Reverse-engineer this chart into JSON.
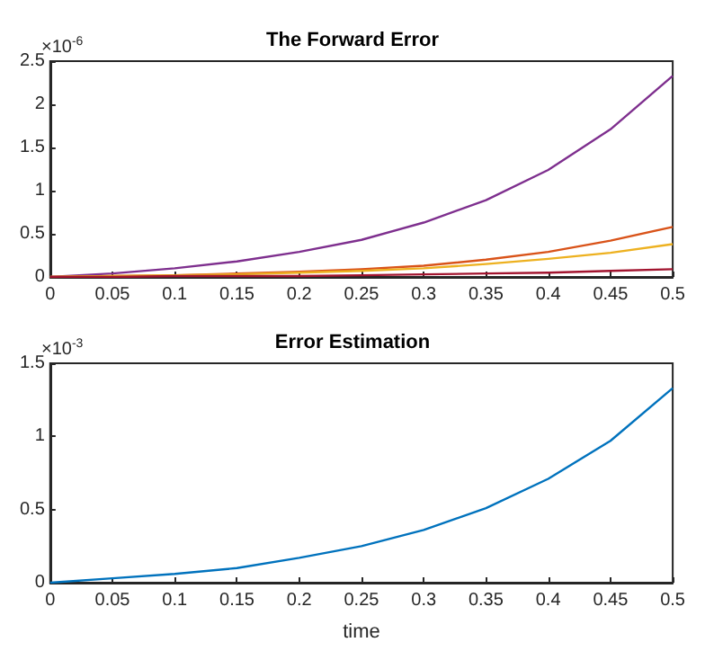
{
  "chart_data": [
    {
      "type": "line",
      "title": "The Forward Error",
      "annotations": [
        "×10$^{-6}$"
      ],
      "x": [
        0,
        0.05,
        0.1,
        0.15,
        0.2,
        0.25,
        0.3,
        0.35,
        0.4,
        0.45,
        0.5
      ],
      "series": [
        {
          "color": "#7e2f8e",
          "values": [
            0,
            0.04,
            0.1,
            0.18,
            0.29,
            0.43,
            0.63,
            0.89,
            1.24,
            1.71,
            2.33
          ]
        },
        {
          "color": "#d95319",
          "values": [
            0,
            0.01,
            0.02,
            0.04,
            0.06,
            0.09,
            0.13,
            0.2,
            0.29,
            0.42,
            0.58
          ]
        },
        {
          "color": "#edb120",
          "values": [
            0,
            0.01,
            0.02,
            0.03,
            0.05,
            0.07,
            0.1,
            0.15,
            0.21,
            0.28,
            0.38
          ]
        },
        {
          "color": "#a2142f",
          "values": [
            0,
            0,
            0.01,
            0.01,
            0.01,
            0.02,
            0.03,
            0.04,
            0.05,
            0.07,
            0.09
          ]
        }
      ],
      "xlim": [
        0,
        0.5
      ],
      "xticks": [
        0,
        0.05,
        0.1,
        0.15,
        0.2,
        0.25,
        0.3,
        0.35,
        0.4,
        0.45,
        0.5
      ],
      "ylim": [
        0,
        2.5
      ],
      "yticks": [
        0,
        0.5,
        1,
        1.5,
        2,
        2.5
      ],
      "marker": "none",
      "line_style": "solid"
    },
    {
      "type": "line",
      "title": "Error Estimation",
      "xlabel": "time",
      "annotations": [
        "×10$^{-3}$"
      ],
      "x": [
        0,
        0.05,
        0.1,
        0.15,
        0.2,
        0.25,
        0.3,
        0.35,
        0.4,
        0.45,
        0.5
      ],
      "series": [
        {
          "color": "#0072bd",
          "values": [
            0,
            0.03,
            0.06,
            0.1,
            0.17,
            0.25,
            0.36,
            0.51,
            0.71,
            0.97,
            1.33
          ]
        }
      ],
      "xlim": [
        0,
        0.5
      ],
      "xticks": [
        0,
        0.05,
        0.1,
        0.15,
        0.2,
        0.25,
        0.3,
        0.35,
        0.4,
        0.45,
        0.5
      ],
      "ylim": [
        0,
        1.5
      ],
      "yticks": [
        0,
        0.5,
        1,
        1.5
      ],
      "marker": "none",
      "line_style": "solid"
    }
  ]
}
